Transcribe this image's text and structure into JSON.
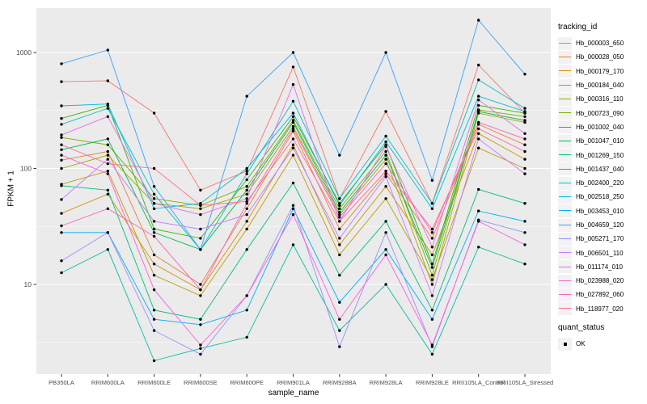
{
  "colors": {
    "panel_bg": "#EBEBEB",
    "grid_major": "#FFFFFF",
    "grid_minor": "#FFFFFF",
    "tick_label": "#4D4D4D",
    "tick_mark": "#333333",
    "point": "#000000",
    "legend_key_bg": "#F2F2F2"
  },
  "axes": {
    "y_title": "FPKM + 1",
    "x_title": "sample_name",
    "y_tick_labels": [
      "1000",
      "100",
      "10"
    ]
  },
  "legend": {
    "tracking_title": "tracking_id",
    "quant_title": "quant_status",
    "quant_items": [
      {
        "label": "OK"
      }
    ]
  },
  "chart_data": {
    "type": "line",
    "title": "",
    "xlabel": "sample_name",
    "ylabel": "FPKM + 1",
    "y_scale": "log10",
    "ylim": [
      1.6,
      2500
    ],
    "y_ticks": [
      10,
      100,
      1000
    ],
    "y_minor_gridlines": [
      3.162,
      31.62,
      316.2
    ],
    "grid": true,
    "legend_title": "tracking_id",
    "legend_position": "right",
    "quant_status_legend": {
      "title": "quant_status",
      "items": [
        "OK"
      ]
    },
    "categories": [
      "PB350LA",
      "RRIM600LA",
      "RRIM600LE",
      "RRIM600SE",
      "RRIM600PE",
      "RRIM901LA",
      "RRIM928BA",
      "RRIM928LA",
      "RRIM928LE",
      "RRII105LA_Control",
      "RRII105LA_Stressed"
    ],
    "series": [
      {
        "name": "Hb_000003_650",
        "color": "#F8766D",
        "values": [
          560,
          570,
          300,
          65,
          95,
          750,
          55,
          310,
          50,
          780,
          300
        ]
      },
      {
        "name": "Hb_000028_050",
        "color": "#EA8331",
        "values": [
          118,
          140,
          18,
          10,
          45,
          210,
          30,
          90,
          25,
          240,
          160
        ]
      },
      {
        "name": "Hb_000179_170",
        "color": "#D89000",
        "values": [
          41,
          60,
          15,
          9,
          35,
          160,
          22,
          70,
          18,
          200,
          120
        ]
      },
      {
        "name": "Hb_000184_040",
        "color": "#C09B00",
        "values": [
          73,
          95,
          12,
          8,
          30,
          130,
          18,
          55,
          11,
          150,
          100
        ]
      },
      {
        "name": "Hb_000316_110",
        "color": "#A3A500",
        "values": [
          100,
          130,
          50,
          45,
          60,
          230,
          40,
          120,
          10,
          300,
          250
        ]
      },
      {
        "name": "Hb_000723_090",
        "color": "#7CAE00",
        "values": [
          185,
          160,
          55,
          48,
          70,
          260,
          45,
          140,
          12,
          320,
          280
        ]
      },
      {
        "name": "Hb_001002_040",
        "color": "#39B600",
        "values": [
          270,
          350,
          30,
          25,
          80,
          280,
          50,
          160,
          15,
          350,
          300
        ]
      },
      {
        "name": "Hb_001047_010",
        "color": "#00BB4E",
        "values": [
          145,
          180,
          28,
          20,
          65,
          250,
          42,
          130,
          14,
          310,
          260
        ]
      },
      {
        "name": "Hb_001269_150",
        "color": "#00BF7D",
        "values": [
          71,
          65,
          6,
          5,
          20,
          75,
          12,
          35,
          6,
          66,
          50
        ]
      },
      {
        "name": "Hb_001437_040",
        "color": "#00C1A3",
        "values": [
          12.6,
          20,
          2.2,
          2.8,
          3.5,
          22,
          4,
          10,
          2.5,
          21,
          15
        ]
      },
      {
        "name": "Hb_002400_220",
        "color": "#00BFC4",
        "values": [
          240,
          330,
          60,
          20,
          90,
          380,
          55,
          190,
          50,
          580,
          330
        ]
      },
      {
        "name": "Hb_002518_250",
        "color": "#00BAE0",
        "values": [
          347,
          360,
          45,
          50,
          100,
          300,
          48,
          170,
          45,
          420,
          310
        ]
      },
      {
        "name": "Hb_003453_010",
        "color": "#00B0F6",
        "values": [
          28,
          28,
          5,
          4.5,
          6,
          45,
          7,
          20,
          5,
          43,
          35
        ]
      },
      {
        "name": "Hb_004659_120",
        "color": "#35A2FF",
        "values": [
          800,
          1050,
          70,
          20,
          420,
          1000,
          130,
          1000,
          79,
          1900,
          650
        ]
      },
      {
        "name": "Hb_005271_170",
        "color": "#9590FF",
        "values": [
          16,
          28,
          4,
          2.5,
          8,
          48,
          2.9,
          28,
          2.9,
          36,
          28
        ]
      },
      {
        "name": "Hb_006501_110",
        "color": "#C77CFF",
        "values": [
          54,
          120,
          35,
          30,
          40,
          150,
          25,
          85,
          8,
          180,
          90
        ]
      },
      {
        "name": "Hb_011174_010",
        "color": "#E76BF3",
        "values": [
          195,
          280,
          50,
          40,
          55,
          530,
          35,
          155,
          21,
          390,
          200
        ]
      },
      {
        "name": "Hb_023988_020",
        "color": "#FA62DB",
        "values": [
          130,
          90,
          9,
          3,
          8,
          40,
          5,
          18,
          3,
          35,
          22
        ]
      },
      {
        "name": "Hb_027892_060",
        "color": "#FF62BC",
        "values": [
          32,
          45,
          26,
          9,
          50,
          220,
          38,
          110,
          28,
          250,
          180
        ]
      },
      {
        "name": "Hb_118977_020",
        "color": "#FF6A98",
        "values": [
          160,
          110,
          100,
          48,
          52,
          180,
          35,
          95,
          30,
          220,
          140
        ]
      }
    ]
  }
}
